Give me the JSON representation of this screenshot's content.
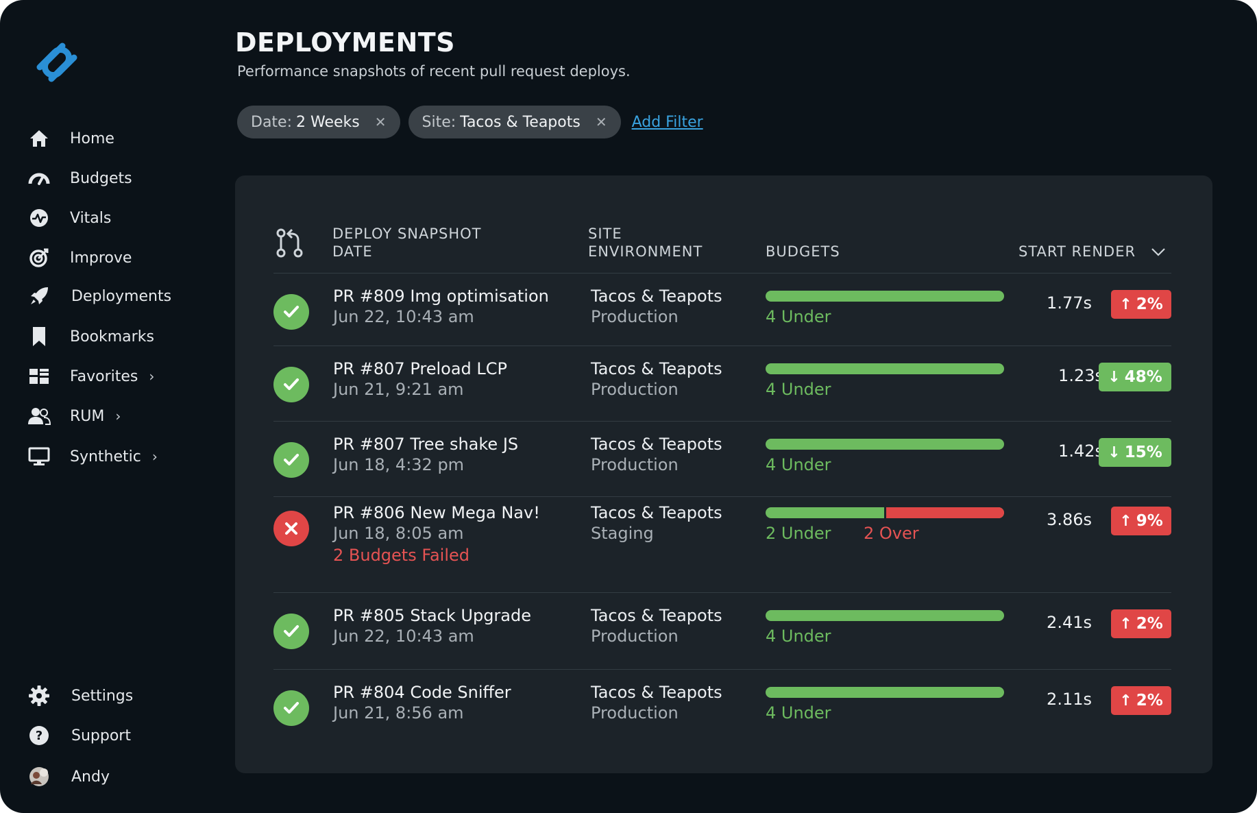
{
  "sidebar": {
    "logo_icon": "paperclip-logo",
    "items": [
      {
        "label": "Home",
        "icon": "home-icon"
      },
      {
        "label": "Budgets",
        "icon": "gauge-icon"
      },
      {
        "label": "Vitals",
        "icon": "pulse-icon"
      },
      {
        "label": "Improve",
        "icon": "target-icon"
      },
      {
        "label": "Deployments",
        "icon": "rocket-icon"
      },
      {
        "label": "Bookmarks",
        "icon": "bookmark-icon"
      },
      {
        "label": "Favorites",
        "icon": "grid-icon",
        "has_submenu": true
      },
      {
        "label": "RUM",
        "icon": "users-icon",
        "has_submenu": true
      },
      {
        "label": "Synthetic",
        "icon": "monitor-icon",
        "has_submenu": true
      }
    ],
    "bottom": [
      {
        "label": "Settings",
        "icon": "gear-icon"
      },
      {
        "label": "Support",
        "icon": "question-icon"
      },
      {
        "label": "Andy",
        "icon": "avatar"
      }
    ]
  },
  "header": {
    "title": "DEPLOYMENTS",
    "subtitle": "Performance snapshots of recent pull request deploys."
  },
  "filters": [
    {
      "key": "Date:",
      "value": "2 Weeks"
    },
    {
      "key": "Site:",
      "value": "Tacos & Teapots"
    }
  ],
  "add_filter_label": "Add Filter",
  "table": {
    "columns": {
      "snapshot_line1": "DEPLOY SNAPSHOT",
      "snapshot_line2": "DATE",
      "site_line1": "SITE",
      "site_line2": "ENVIRONMENT",
      "budgets": "BUDGETS",
      "start_render": "START RENDER"
    },
    "rows": [
      {
        "status": "passed",
        "title": "PR #809 Img optimisation",
        "date": "Jun 22, 10:43 am",
        "failed_note": "",
        "site": "Tacos & Teapots",
        "env": "Production",
        "under": 4,
        "over": 0,
        "under_label": "4 Under",
        "over_label": "",
        "render": "1.77s",
        "delta": "2%",
        "delta_dir": "up"
      },
      {
        "status": "passed",
        "title": "PR #807 Preload LCP",
        "date": "Jun 21, 9:21 am",
        "failed_note": "",
        "site": "Tacos & Teapots",
        "env": "Production",
        "under": 4,
        "over": 0,
        "under_label": "4 Under",
        "over_label": "",
        "render": "1.23s",
        "delta": "48%",
        "delta_dir": "down"
      },
      {
        "status": "passed",
        "title": "PR #807 Tree shake JS",
        "date": "Jun 18, 4:32 pm",
        "failed_note": "",
        "site": "Tacos & Teapots",
        "env": "Production",
        "under": 4,
        "over": 0,
        "under_label": "4 Under",
        "over_label": "",
        "render": "1.42s",
        "delta": "15%",
        "delta_dir": "down"
      },
      {
        "status": "failed",
        "title": "PR #806 New Mega Nav!",
        "date": "Jun 18, 8:05 am",
        "failed_note": "2 Budgets Failed",
        "site": "Tacos & Teapots",
        "env": "Staging",
        "under": 2,
        "over": 2,
        "under_label": "2 Under",
        "over_label": "2 Over",
        "render": "3.86s",
        "delta": "9%",
        "delta_dir": "up"
      },
      {
        "status": "passed",
        "title": "PR #805 Stack Upgrade",
        "date": "Jun 22, 10:43 am",
        "failed_note": "",
        "site": "Tacos & Teapots",
        "env": "Production",
        "under": 4,
        "over": 0,
        "under_label": "4 Under",
        "over_label": "",
        "render": "2.41s",
        "delta": "2%",
        "delta_dir": "up"
      },
      {
        "status": "passed",
        "title": "PR #804 Code Sniffer",
        "date": "Jun 21, 8:56 am",
        "failed_note": "",
        "site": "Tacos & Teapots",
        "env": "Production",
        "under": 4,
        "over": 0,
        "under_label": "4 Under",
        "over_label": "",
        "render": "2.11s",
        "delta": "2%",
        "delta_dir": "up"
      }
    ]
  },
  "colors": {
    "background": "#0b1218",
    "card": "#1c2329",
    "pass": "#6dbb5f",
    "fail": "#e04646",
    "link": "#3aa3e0",
    "logo": "#2a8fd6"
  }
}
